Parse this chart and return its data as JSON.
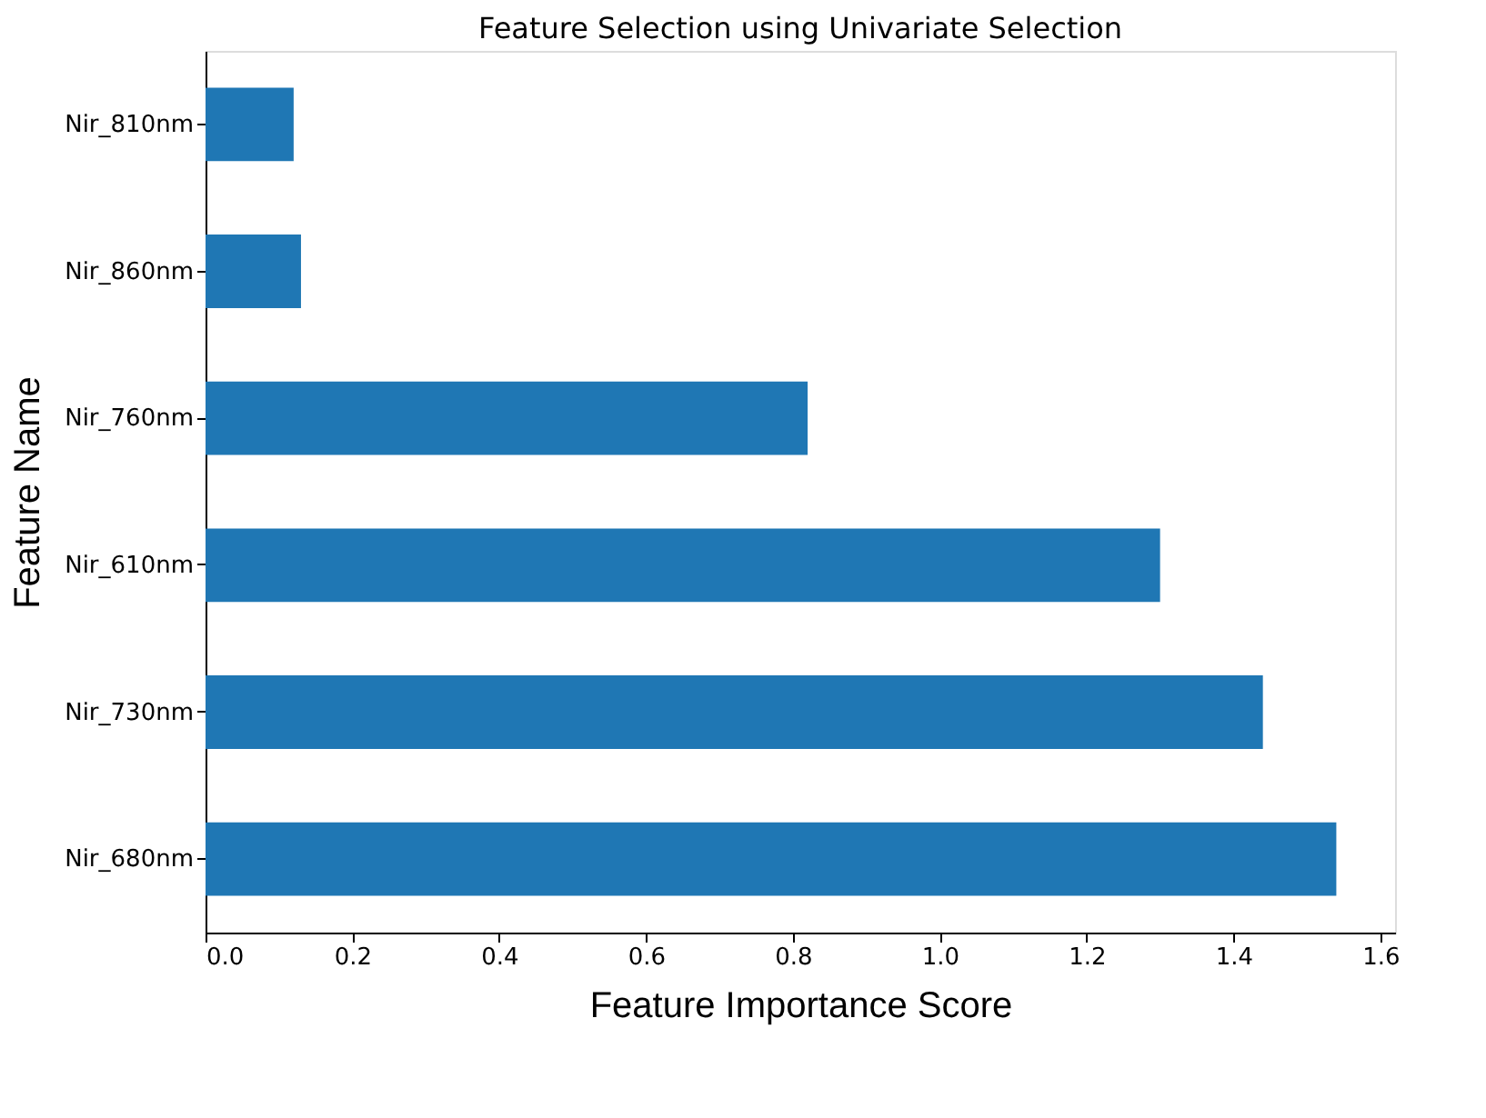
{
  "chart_data": {
    "type": "bar",
    "orientation": "horizontal",
    "title": "Feature Selection using Univariate Selection",
    "xlabel": "Feature Importance Score",
    "ylabel": "Feature Name",
    "categories": [
      "Nir_810nm",
      "Nir_860nm",
      "Nir_760nm",
      "Nir_610nm",
      "Nir_730nm",
      "Nir_680nm"
    ],
    "values": [
      0.12,
      0.13,
      0.82,
      1.3,
      1.44,
      1.54
    ],
    "color": "#1f77b4",
    "xlim": [
      0,
      1.62
    ],
    "xticks": [
      {
        "value": 0,
        "label": "0.0"
      },
      0.2,
      0.4,
      0.6,
      0.8,
      {
        "value": 1,
        "label": "1.0"
      },
      1.2,
      1.4,
      1.6
    ],
    "grid": false
  }
}
